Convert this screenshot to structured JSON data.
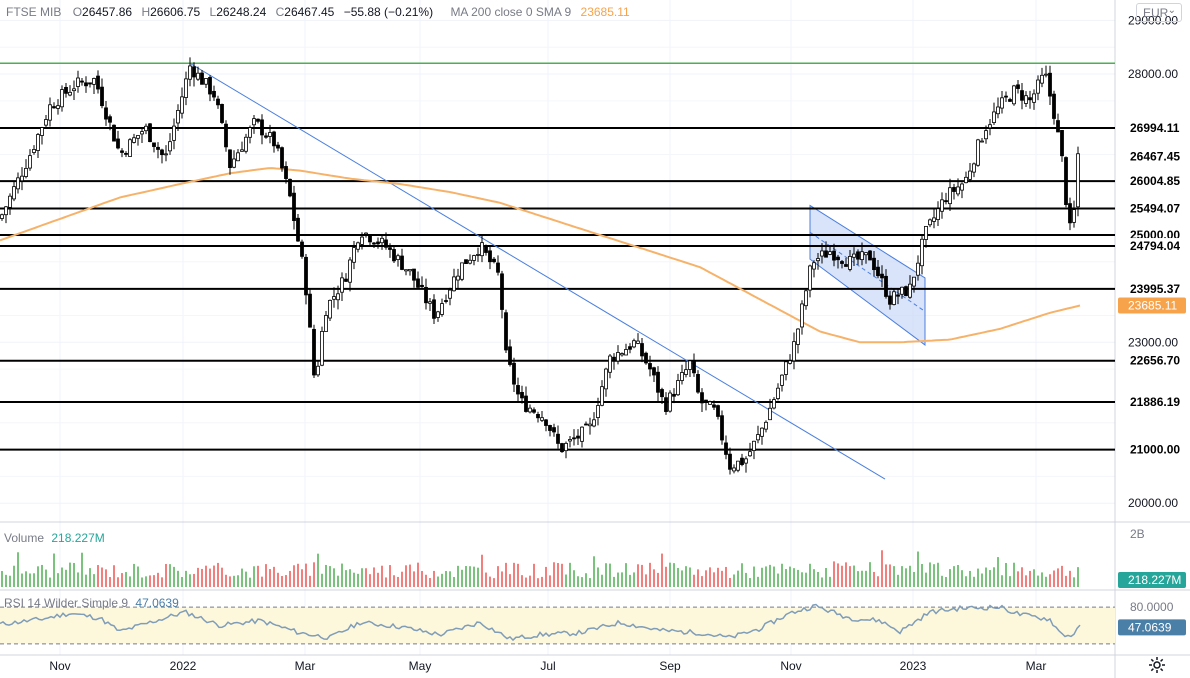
{
  "header": {
    "symbol": "FTSE MIB",
    "open_label": "O",
    "open": "26457.86",
    "high_label": "H",
    "high": "26606.75",
    "low_label": "L",
    "low": "26248.24",
    "close_label": "C",
    "close": "26467.45",
    "change": "−55.88 (−0.21%)",
    "ma_label": "MA 200 close 0 SMA 9",
    "ma_value": "23685.11"
  },
  "currency_selector": {
    "label": "EUR",
    "chevron": "chevron-down-icon"
  },
  "volume_legend": {
    "label": "Volume",
    "value": "218.227M"
  },
  "rsi_legend": {
    "label": "RSI 14 Wilder Simple 9",
    "value": "47.0639"
  },
  "colors": {
    "candle": "#000000",
    "ma200": "#f7b26a",
    "trendline": "#4a7fe0",
    "channel_fill": "#c9d7f6",
    "resistance": "#4caf50",
    "volume_up": "#4caf50",
    "volume_down": "#ef5350",
    "rsi_line": "#7f9db8",
    "rsi_band": "#fdf8dc"
  },
  "chart_data": {
    "type": "candlestick",
    "title": "FTSE MIB",
    "x_axis_labels": [
      "Nov",
      "2022",
      "Mar",
      "May",
      "Jul",
      "Sep",
      "Nov",
      "2023",
      "Mar"
    ],
    "y_ticks": [
      20000,
      21000,
      23000,
      28000,
      29000
    ],
    "y_tick_labels": [
      "20000.00",
      "21000.00",
      "23000.00",
      "28000.00",
      "29000.00"
    ],
    "ylim": [
      19650,
      29380
    ],
    "grid": true,
    "horizontal_levels": [
      {
        "label": "26994.11",
        "value": 26994.11
      },
      {
        "label": "26004.85",
        "value": 26004.85
      },
      {
        "label": "25494.07",
        "value": 25494.07
      },
      {
        "label": "25000.00",
        "value": 25000.0
      },
      {
        "label": "24794.04",
        "value": 24794.04
      },
      {
        "label": "23995.37",
        "value": 23995.37
      },
      {
        "label": "22656.70",
        "value": 22656.7
      },
      {
        "label": "21886.19",
        "value": 21886.19
      },
      {
        "label": "21000.00",
        "value": 21000.0
      }
    ],
    "resistance_level": 28200,
    "last_price": {
      "label": "26467.45",
      "value": 26467.45
    },
    "ma200_last": {
      "label": "23685.11",
      "value": 23685.11
    },
    "price_keypoints": [
      [
        0,
        25300
      ],
      [
        10,
        25700
      ],
      [
        30,
        26500
      ],
      [
        50,
        27400
      ],
      [
        75,
        27800
      ],
      [
        95,
        27900
      ],
      [
        120,
        26500
      ],
      [
        145,
        27000
      ],
      [
        165,
        26400
      ],
      [
        190,
        28150
      ],
      [
        215,
        27600
      ],
      [
        230,
        26300
      ],
      [
        255,
        27100
      ],
      [
        275,
        26700
      ],
      [
        290,
        25700
      ],
      [
        305,
        24200
      ],
      [
        315,
        22200
      ],
      [
        325,
        23600
      ],
      [
        345,
        24200
      ],
      [
        360,
        25100
      ],
      [
        385,
        24800
      ],
      [
        410,
        24300
      ],
      [
        435,
        23500
      ],
      [
        460,
        24400
      ],
      [
        480,
        24800
      ],
      [
        500,
        24200
      ],
      [
        505,
        22800
      ],
      [
        520,
        21900
      ],
      [
        545,
        21600
      ],
      [
        560,
        21000
      ],
      [
        575,
        21200
      ],
      [
        590,
        21400
      ],
      [
        610,
        22700
      ],
      [
        635,
        23000
      ],
      [
        650,
        22500
      ],
      [
        665,
        21800
      ],
      [
        690,
        22600
      ],
      [
        700,
        21900
      ],
      [
        715,
        21700
      ],
      [
        730,
        20700
      ],
      [
        745,
        20800
      ],
      [
        760,
        21300
      ],
      [
        775,
        22000
      ],
      [
        795,
        23000
      ],
      [
        812,
        24500
      ],
      [
        830,
        24700
      ],
      [
        850,
        24500
      ],
      [
        870,
        24600
      ],
      [
        890,
        23800
      ],
      [
        910,
        24000
      ],
      [
        925,
        25000
      ],
      [
        945,
        25700
      ],
      [
        965,
        26000
      ],
      [
        985,
        27000
      ],
      [
        1000,
        27400
      ],
      [
        1015,
        27700
      ],
      [
        1030,
        27500
      ],
      [
        1045,
        28000
      ],
      [
        1055,
        27200
      ],
      [
        1062,
        26400
      ],
      [
        1068,
        25300
      ],
      [
        1072,
        24900
      ],
      [
        1078,
        26500
      ]
    ],
    "ma200_keypoints": [
      [
        0,
        24900
      ],
      [
        60,
        25300
      ],
      [
        120,
        25700
      ],
      [
        180,
        25950
      ],
      [
        230,
        26150
      ],
      [
        270,
        26250
      ],
      [
        300,
        26200
      ],
      [
        350,
        26050
      ],
      [
        400,
        25950
      ],
      [
        450,
        25800
      ],
      [
        500,
        25600
      ],
      [
        550,
        25300
      ],
      [
        600,
        25000
      ],
      [
        650,
        24700
      ],
      [
        700,
        24400
      ],
      [
        740,
        24000
      ],
      [
        780,
        23600
      ],
      [
        820,
        23200
      ],
      [
        860,
        23000
      ],
      [
        900,
        23000
      ],
      [
        950,
        23050
      ],
      [
        1000,
        23250
      ],
      [
        1050,
        23550
      ],
      [
        1080,
        23685
      ]
    ],
    "downtrend_line": [
      [
        190,
        28200
      ],
      [
        885,
        20450
      ]
    ],
    "channel": {
      "upper": [
        [
          810,
          25550
        ],
        [
          925,
          24200
        ]
      ],
      "lower": [
        [
          810,
          24550
        ],
        [
          925,
          22950
        ]
      ]
    },
    "volume": {
      "label": "Volume",
      "axis_label": "2B",
      "last": "218.227M",
      "min_ratio": 0.22,
      "max_ratio": 0.95
    },
    "rsi": {
      "label": "RSI 14 Wilder Simple 9",
      "upper": 80,
      "lower": 20,
      "axis_label": "80.0000",
      "last": "47.0639",
      "keypoints": [
        [
          0,
          52
        ],
        [
          40,
          60
        ],
        [
          70,
          70
        ],
        [
          100,
          62
        ],
        [
          120,
          40
        ],
        [
          150,
          55
        ],
        [
          185,
          72
        ],
        [
          220,
          50
        ],
        [
          260,
          58
        ],
        [
          300,
          38
        ],
        [
          330,
          30
        ],
        [
          360,
          55
        ],
        [
          400,
          48
        ],
        [
          440,
          35
        ],
        [
          480,
          55
        ],
        [
          510,
          28
        ],
        [
          540,
          35
        ],
        [
          580,
          38
        ],
        [
          620,
          55
        ],
        [
          660,
          42
        ],
        [
          700,
          38
        ],
        [
          730,
          30
        ],
        [
          760,
          45
        ],
        [
          790,
          70
        ],
        [
          815,
          82
        ],
        [
          850,
          62
        ],
        [
          880,
          58
        ],
        [
          900,
          40
        ],
        [
          930,
          72
        ],
        [
          960,
          78
        ],
        [
          1000,
          80
        ],
        [
          1020,
          68
        ],
        [
          1050,
          60
        ],
        [
          1060,
          38
        ],
        [
          1070,
          32
        ],
        [
          1080,
          47
        ]
      ]
    }
  }
}
